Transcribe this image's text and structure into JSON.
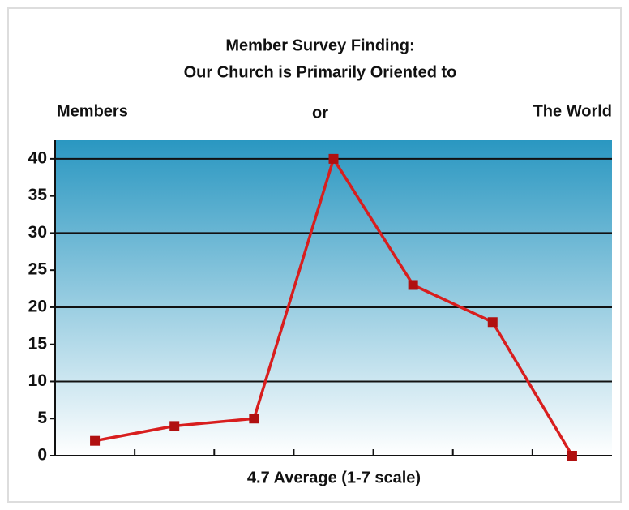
{
  "chart_data": {
    "type": "line",
    "title": "Member Survey Finding:",
    "subtitle": "Our Church is Primarily Oriented to",
    "annotations": [
      "Members",
      "or",
      "The World"
    ],
    "xlabel": "4.7 Average (1-7 scale)",
    "x": [
      1,
      2,
      3,
      4,
      5,
      6,
      7
    ],
    "series": [
      {
        "color": "#d81e1e",
        "marker_color": "#b01010",
        "values": [
          2,
          4,
          5,
          40,
          23,
          18,
          0
        ]
      }
    ],
    "xlim": [
      0.5,
      7.5
    ],
    "xticks": [
      1.5,
      2.5,
      3.5,
      4.5,
      5.5,
      6.5
    ],
    "ylim": [
      0,
      42.5
    ],
    "yticks": [
      0,
      5,
      10,
      15,
      20,
      25,
      30,
      35,
      40
    ],
    "grid_ticks": [
      10,
      20,
      30,
      40
    ],
    "background": [
      "#2a97c1",
      "#ffffff"
    ]
  }
}
